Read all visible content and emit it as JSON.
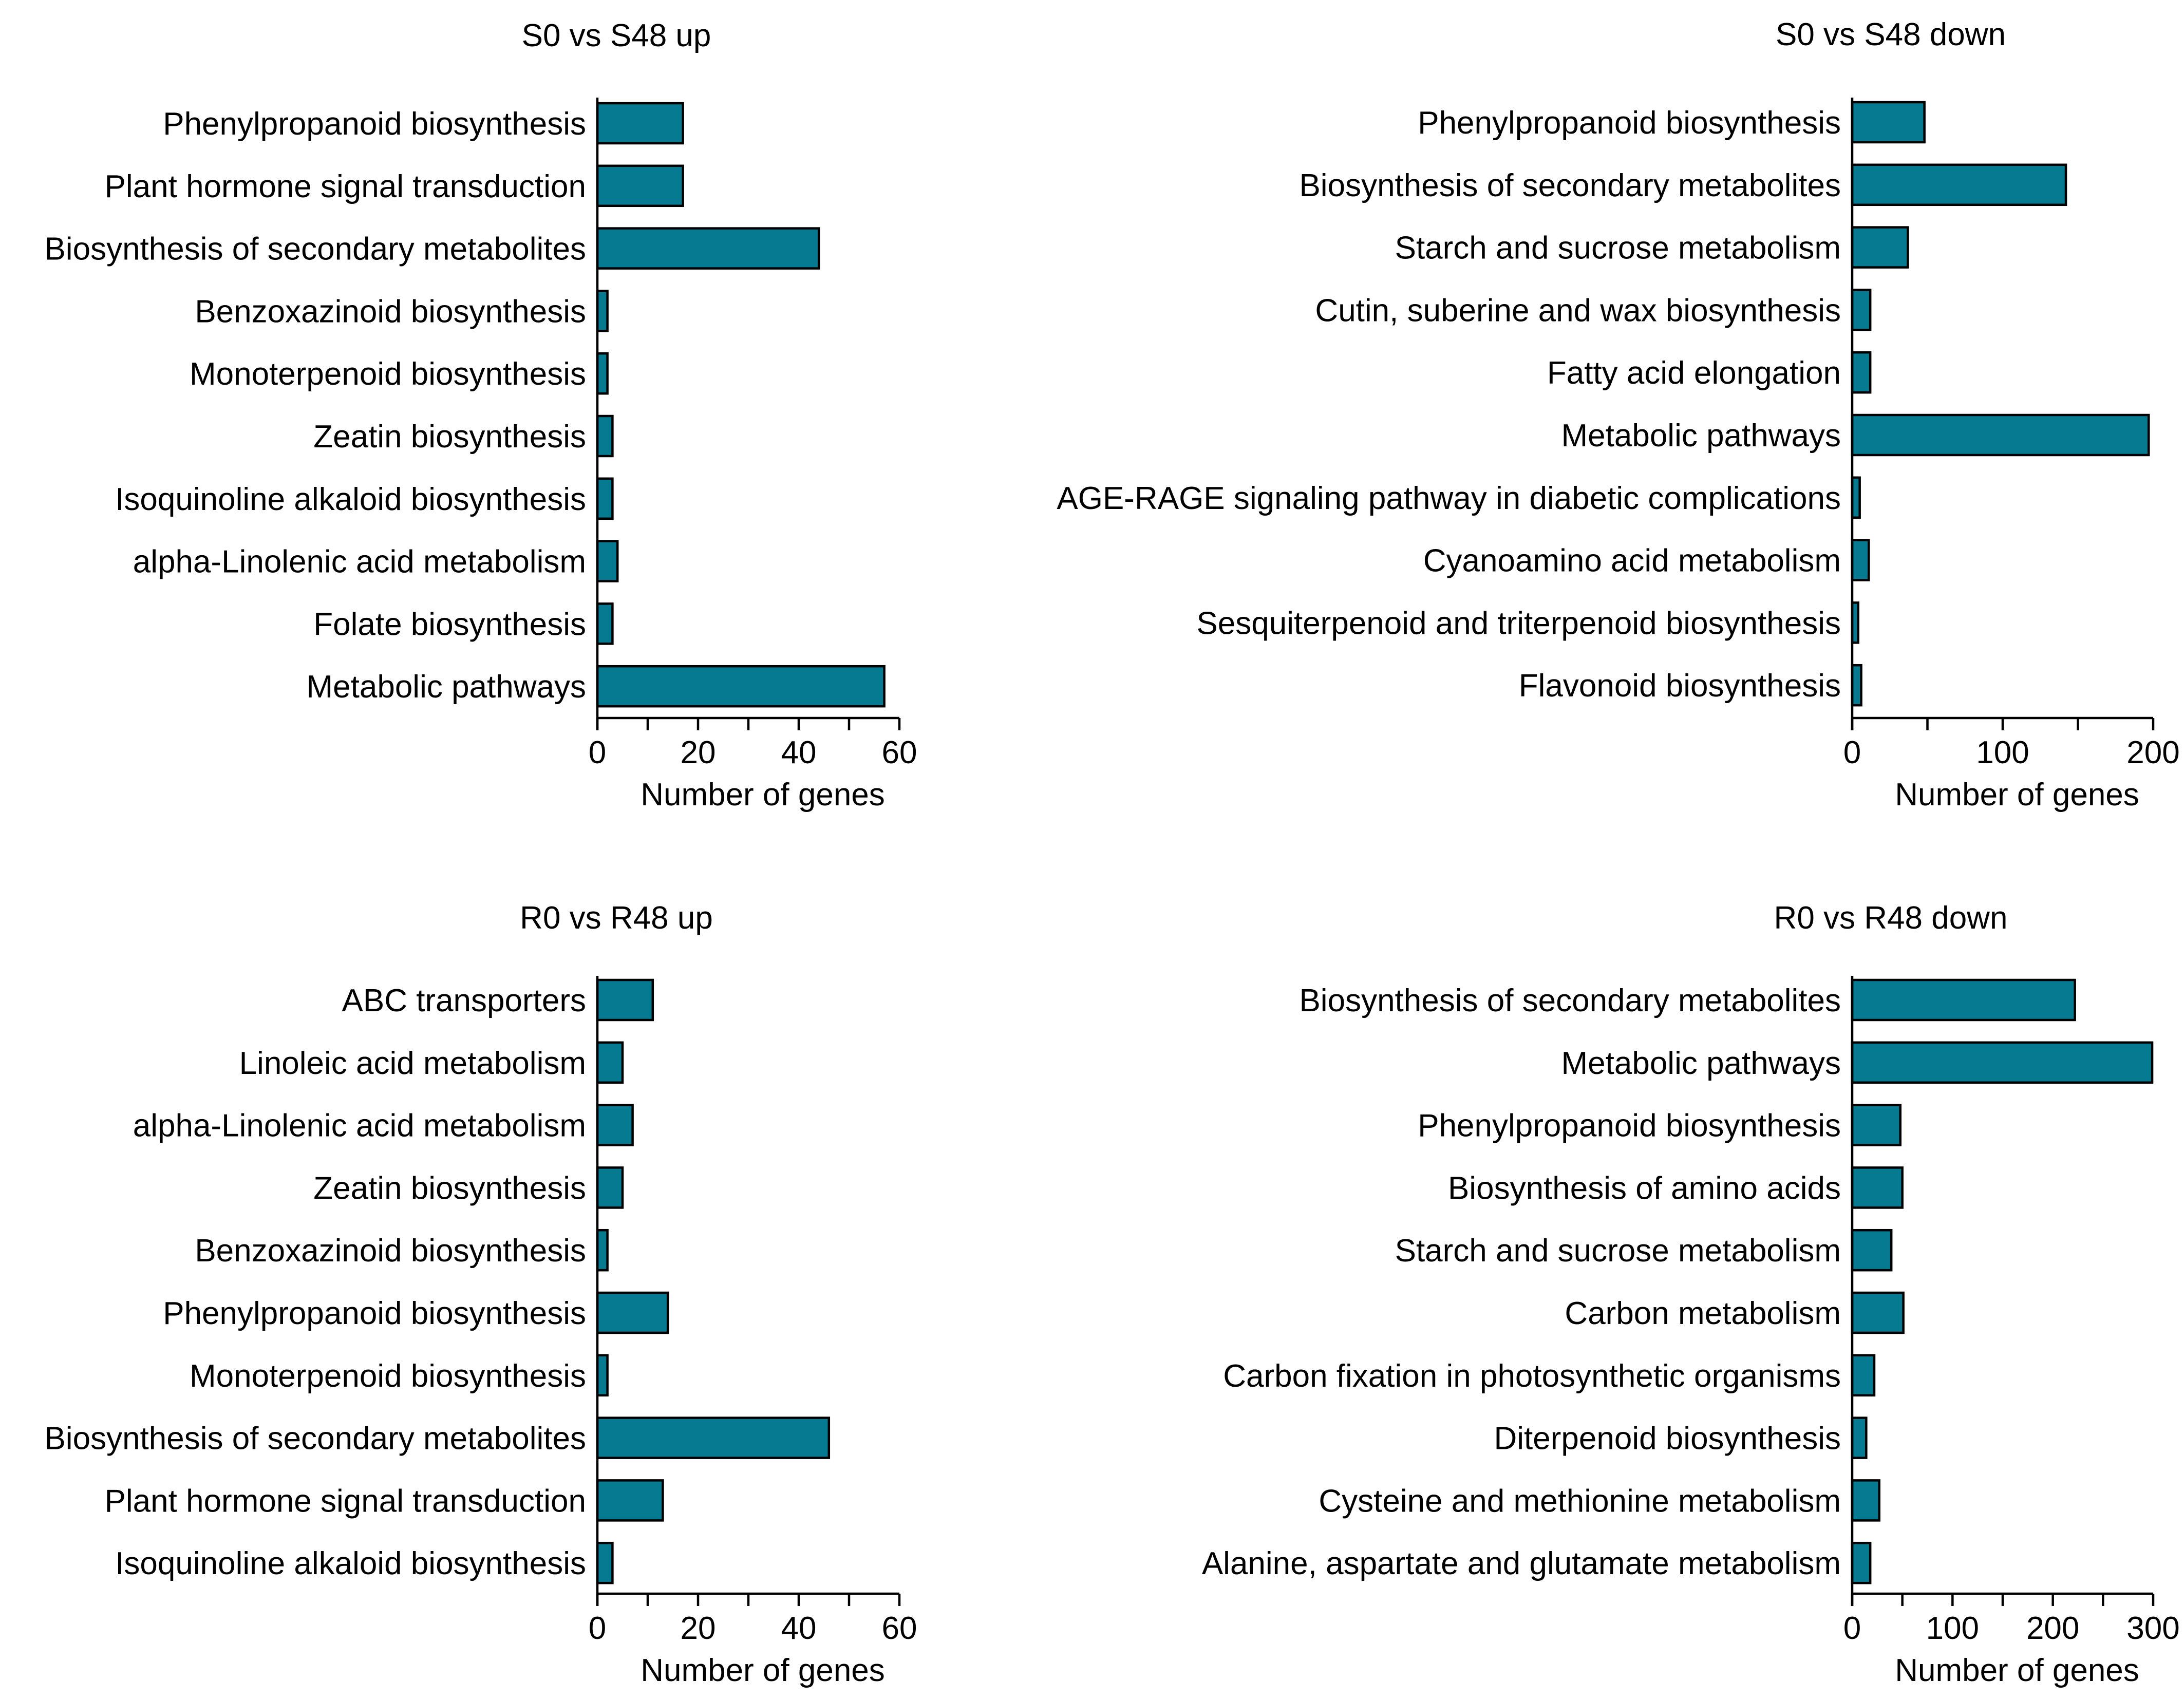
{
  "chart_data": [
    {
      "type": "bar",
      "orientation": "horizontal",
      "title": "S0 vs S48 up",
      "xlabel": "Number of genes",
      "ylabel": "",
      "xlim": [
        0,
        60
      ],
      "xticks": [
        0,
        20,
        40,
        60
      ],
      "minor_step": 10,
      "color": "#067a91",
      "categories": [
        "Phenylpropanoid biosynthesis",
        "Plant hormone signal transduction",
        "Biosynthesis of secondary metabolites",
        "Benzoxazinoid biosynthesis",
        "Monoterpenoid biosynthesis",
        "Zeatin biosynthesis",
        "Isoquinoline alkaloid biosynthesis",
        "alpha-Linolenic acid metabolism",
        "Folate biosynthesis",
        "Metabolic pathways"
      ],
      "values": [
        17,
        17,
        44,
        2,
        2,
        3,
        3,
        4,
        3,
        57
      ]
    },
    {
      "type": "bar",
      "orientation": "horizontal",
      "title": "S0 vs S48 down",
      "xlabel": "Number of genes",
      "ylabel": "",
      "xlim": [
        0,
        200
      ],
      "xticks": [
        0,
        100,
        200
      ],
      "minor_step": 50,
      "color": "#067a91",
      "categories": [
        "Phenylpropanoid biosynthesis",
        "Biosynthesis of secondary metabolites",
        "Starch and sucrose metabolism",
        "Cutin, suberine and wax biosynthesis",
        "Fatty acid elongation",
        "Metabolic pathways",
        "AGE-RAGE signaling pathway in diabetic complications",
        "Cyanoamino acid metabolism",
        "Sesquiterpenoid and triterpenoid biosynthesis",
        "Flavonoid biosynthesis"
      ],
      "values": [
        48,
        142,
        37,
        12,
        12,
        197,
        5,
        11,
        4,
        6
      ]
    },
    {
      "type": "bar",
      "orientation": "horizontal",
      "title": "R0 vs R48 up",
      "xlabel": "Number of genes",
      "ylabel": "",
      "xlim": [
        0,
        60
      ],
      "xticks": [
        0,
        20,
        40,
        60
      ],
      "minor_step": 10,
      "color": "#067a91",
      "categories": [
        "ABC transporters",
        "Linoleic acid metabolism",
        "alpha-Linolenic acid metabolism",
        "Zeatin biosynthesis",
        "Benzoxazinoid biosynthesis",
        "Phenylpropanoid biosynthesis",
        "Monoterpenoid biosynthesis",
        "Biosynthesis of secondary metabolites",
        "Plant hormone signal transduction",
        "Isoquinoline alkaloid biosynthesis"
      ],
      "values": [
        11,
        5,
        7,
        5,
        2,
        14,
        2,
        46,
        13,
        3
      ]
    },
    {
      "type": "bar",
      "orientation": "horizontal",
      "title": "R0 vs R48 down",
      "xlabel": "Number of genes",
      "ylabel": "",
      "xlim": [
        0,
        300
      ],
      "xticks": [
        0,
        100,
        200,
        300
      ],
      "minor_step": 50,
      "color": "#067a91",
      "categories": [
        "Biosynthesis of secondary metabolites",
        "Metabolic pathways",
        "Phenylpropanoid biosynthesis",
        "Biosynthesis of amino acids",
        "Starch and sucrose metabolism",
        "Carbon metabolism",
        "Carbon fixation in photosynthetic organisms",
        "Diterpenoid biosynthesis",
        "Cysteine and methionine metabolism",
        "Alanine, aspartate and glutamate metabolism"
      ],
      "values": [
        222,
        299,
        48,
        50,
        39,
        51,
        22,
        14,
        27,
        18
      ]
    }
  ]
}
